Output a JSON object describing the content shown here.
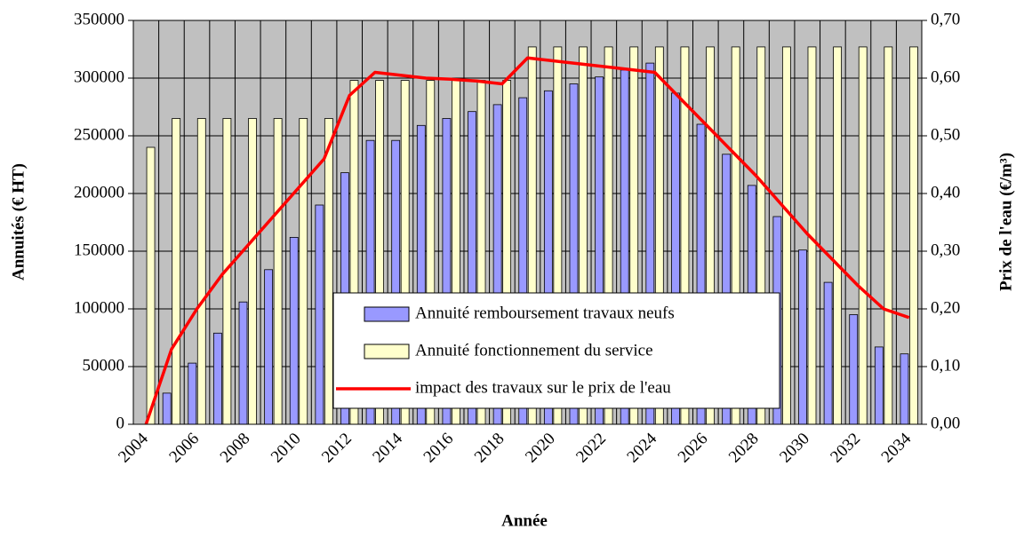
{
  "chart_data": {
    "type": "bar_line",
    "x_label": "Année",
    "y_label": "Annuités (€ HT)",
    "y2_label": "Prix de l'eau (€/m³)",
    "categories": [
      "2004",
      null,
      "2006",
      null,
      "2008",
      null,
      "2010",
      null,
      "2012",
      null,
      "2014",
      null,
      "2016",
      null,
      "2018",
      null,
      "2020",
      null,
      "2022",
      null,
      "2024",
      null,
      "2026",
      null,
      "2028",
      null,
      "2030",
      null,
      "2032",
      null,
      "2034"
    ],
    "series": [
      {
        "name": "Annuité remboursement travaux neufs",
        "color": "#9999ff",
        "kind": "bar",
        "values": [
          0,
          27000,
          53000,
          79000,
          106000,
          134000,
          162000,
          190000,
          218000,
          246000,
          246000,
          259000,
          265000,
          271000,
          277000,
          283000,
          289000,
          295000,
          301000,
          307000,
          313000,
          287000,
          260000,
          234000,
          207000,
          180000,
          151000,
          123000,
          95000,
          67000,
          61000
        ]
      },
      {
        "name": "Annuité fonctionnement du service",
        "color": "#ffffcc",
        "kind": "bar",
        "values": [
          240000,
          265000,
          265000,
          265000,
          265000,
          265000,
          265000,
          265000,
          298000,
          298000,
          298000,
          298000,
          298000,
          298000,
          298000,
          327000,
          327000,
          327000,
          327000,
          327000,
          327000,
          327000,
          327000,
          327000,
          327000,
          327000,
          327000,
          327000,
          327000,
          327000,
          327000
        ]
      },
      {
        "name": "impact des travaux sur le prix de l'eau",
        "color": "#ff0000",
        "kind": "line",
        "axis": "y2",
        "values": [
          0,
          0.13,
          0.2,
          0.26,
          0.31,
          0.36,
          0.41,
          0.46,
          0.57,
          0.61,
          0.605,
          0.6,
          0.598,
          0.595,
          0.59,
          0.635,
          0.63,
          0.625,
          0.62,
          0.615,
          0.61,
          0.565,
          0.52,
          0.475,
          0.43,
          0.38,
          0.33,
          0.285,
          0.24,
          0.2,
          0.185
        ]
      }
    ],
    "ylim": [
      0,
      350000
    ],
    "yticks": [
      0,
      50000,
      100000,
      150000,
      200000,
      250000,
      300000,
      350000
    ],
    "y2lim": [
      0,
      0.7
    ],
    "y2ticks": [
      {
        "value": 0,
        "label": "0,00"
      },
      {
        "value": 0.1,
        "label": "0,10"
      },
      {
        "value": 0.2,
        "label": "0,20"
      },
      {
        "value": 0.3,
        "label": "0,30"
      },
      {
        "value": 0.4,
        "label": "0,40"
      },
      {
        "value": 0.5,
        "label": "0,50"
      },
      {
        "value": 0.6,
        "label": "0,60"
      },
      {
        "value": 0.7,
        "label": "0,70"
      }
    ],
    "grid": true
  }
}
